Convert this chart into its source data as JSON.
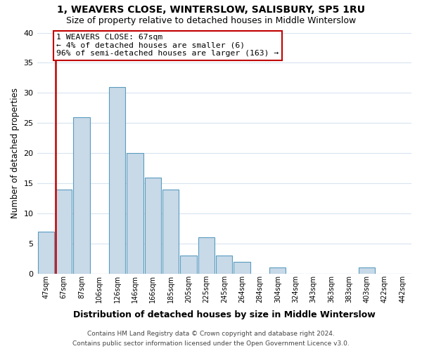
{
  "title1": "1, WEAVERS CLOSE, WINTERSLOW, SALISBURY, SP5 1RU",
  "title2": "Size of property relative to detached houses in Middle Winterslow",
  "xlabel": "Distribution of detached houses by size in Middle Winterslow",
  "ylabel": "Number of detached properties",
  "bin_labels": [
    "47sqm",
    "67sqm",
    "87sqm",
    "106sqm",
    "126sqm",
    "146sqm",
    "166sqm",
    "185sqm",
    "205sqm",
    "225sqm",
    "245sqm",
    "264sqm",
    "284sqm",
    "304sqm",
    "324sqm",
    "343sqm",
    "363sqm",
    "383sqm",
    "403sqm",
    "422sqm",
    "442sqm"
  ],
  "bar_heights": [
    7,
    14,
    26,
    0,
    31,
    20,
    16,
    14,
    3,
    6,
    3,
    2,
    0,
    1,
    0,
    0,
    0,
    0,
    1,
    0,
    0
  ],
  "bar_color_normal": "#c8d9e8",
  "bar_edge_color": "#5a9cbf",
  "highlight_bar_index": 1,
  "highlight_color": "#c00000",
  "annotation_title": "1 WEAVERS CLOSE: 67sqm",
  "annotation_line1": "← 4% of detached houses are smaller (6)",
  "annotation_line2": "96% of semi-detached houses are larger (163) →",
  "annotation_box_color": "#ffffff",
  "annotation_box_edge": "#c00000",
  "ylim": [
    0,
    40
  ],
  "yticks": [
    0,
    5,
    10,
    15,
    20,
    25,
    30,
    35,
    40
  ],
  "footer1": "Contains HM Land Registry data © Crown copyright and database right 2024.",
  "footer2": "Contains public sector information licensed under the Open Government Licence v3.0.",
  "background_color": "#ffffff",
  "grid_color": "#d8e4f0"
}
